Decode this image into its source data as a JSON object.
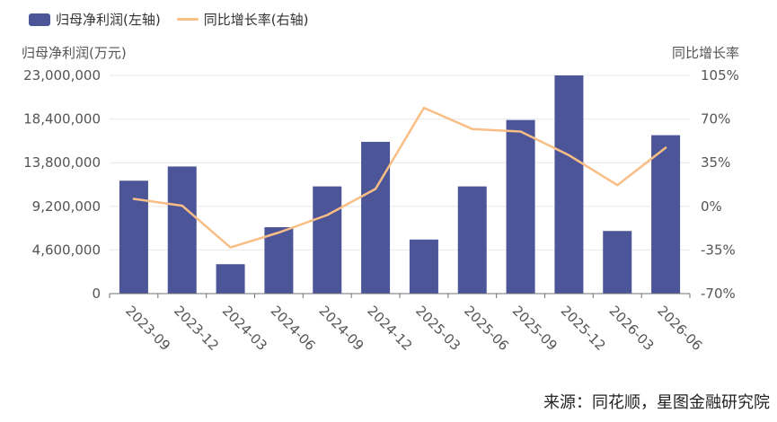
{
  "legend": {
    "bar_label": "归母净利润(左轴)",
    "line_label": "同比增长率(右轴)"
  },
  "axis_titles": {
    "left": "归母净利润(万元)",
    "right": "同比增长率"
  },
  "source": "来源：同花顺，星图金融研究院",
  "colors": {
    "bar": "#4d5599",
    "line": "#f9be85",
    "grid": "#e8e8ee",
    "axis": "#6e7079",
    "text": "#555555"
  },
  "chart_data": {
    "type": "bar",
    "categories": [
      "2023-09",
      "2023-12",
      "2024-03",
      "2024-06",
      "2024-09",
      "2024-12",
      "2025-03",
      "2025-06",
      "2025-09",
      "2025-12",
      "2026-03",
      "2026-06"
    ],
    "series": [
      {
        "name": "归母净利润(左轴)",
        "type": "bar",
        "axis": "left",
        "values": [
          11900000,
          13400000,
          3100000,
          7000000,
          11300000,
          16000000,
          5700000,
          11300000,
          18300000,
          23000000,
          6600000,
          16700000
        ]
      },
      {
        "name": "同比增长率(右轴)",
        "type": "line",
        "axis": "right",
        "values": [
          6,
          0.5,
          -33,
          -21,
          -7,
          14,
          79,
          62,
          60,
          41,
          17,
          47
        ]
      }
    ],
    "y_left": {
      "ylim": [
        0,
        23000000
      ],
      "ticks": [
        "0",
        "4,600,000",
        "9,200,000",
        "13,800,000",
        "18,400,000",
        "23,000,000"
      ]
    },
    "y_right": {
      "ylim": [
        -70,
        105
      ],
      "ticks": [
        "-70%",
        "-35%",
        "0%",
        "35%",
        "70%",
        "105%"
      ]
    },
    "grid": true,
    "legend_position": "top-left"
  }
}
